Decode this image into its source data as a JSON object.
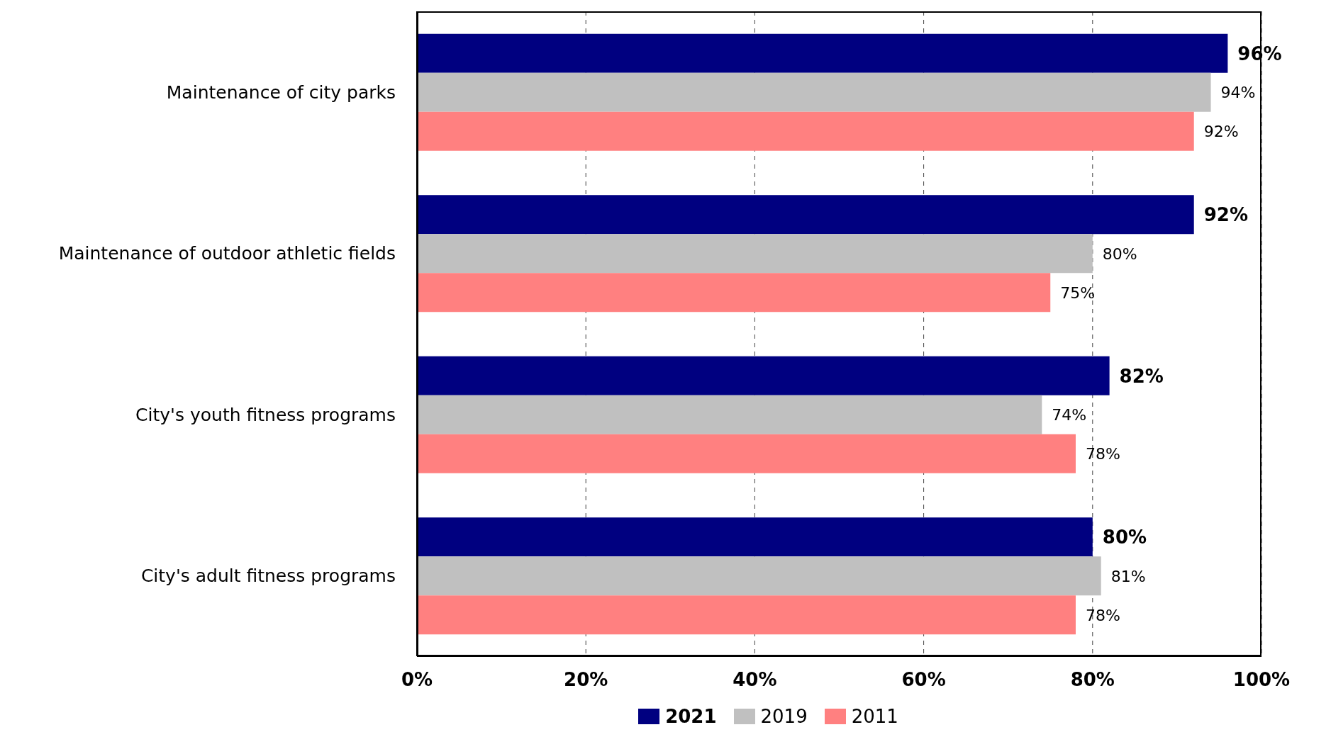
{
  "chart_data": {
    "type": "bar",
    "orientation": "horizontal",
    "categories": [
      "Maintenance of city parks",
      "Maintenance of outdoor athletic fields",
      "City's youth fitness programs",
      "City's adult fitness programs"
    ],
    "series": [
      {
        "name": "2021",
        "color": "#000080",
        "values": [
          96,
          92,
          82,
          80
        ],
        "value_labels": [
          "96%",
          "92%",
          "82%",
          "80%"
        ]
      },
      {
        "name": "2019",
        "color": "#c0c0c0",
        "values": [
          94,
          80,
          74,
          81
        ],
        "value_labels": [
          "94%",
          "80%",
          "74%",
          "81%"
        ]
      },
      {
        "name": "2011",
        "color": "#ff8080",
        "values": [
          92,
          75,
          78,
          78
        ],
        "value_labels": [
          "92%",
          "75%",
          "78%",
          "78%"
        ]
      }
    ],
    "xlim": [
      0,
      100
    ],
    "xticks": [
      {
        "value": 0,
        "label": "0%"
      },
      {
        "value": 20,
        "label": "20%"
      },
      {
        "value": 40,
        "label": "40%"
      },
      {
        "value": 60,
        "label": "60%"
      },
      {
        "value": 80,
        "label": "80%"
      },
      {
        "value": 100,
        "label": "100%"
      }
    ],
    "grid": "x",
    "legend": "bottom"
  }
}
